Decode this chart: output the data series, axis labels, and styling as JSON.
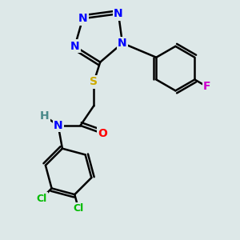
{
  "background_color": "#dde8e8",
  "bond_color": "#000000",
  "bond_width": 1.8,
  "atom_colors": {
    "N": "#0000ff",
    "O": "#ff0000",
    "S": "#ccaa00",
    "F": "#cc00cc",
    "Cl": "#00bb00",
    "C": "#000000",
    "H": "#4a8a8a"
  },
  "font_size": 10,
  "font_size_small": 9
}
